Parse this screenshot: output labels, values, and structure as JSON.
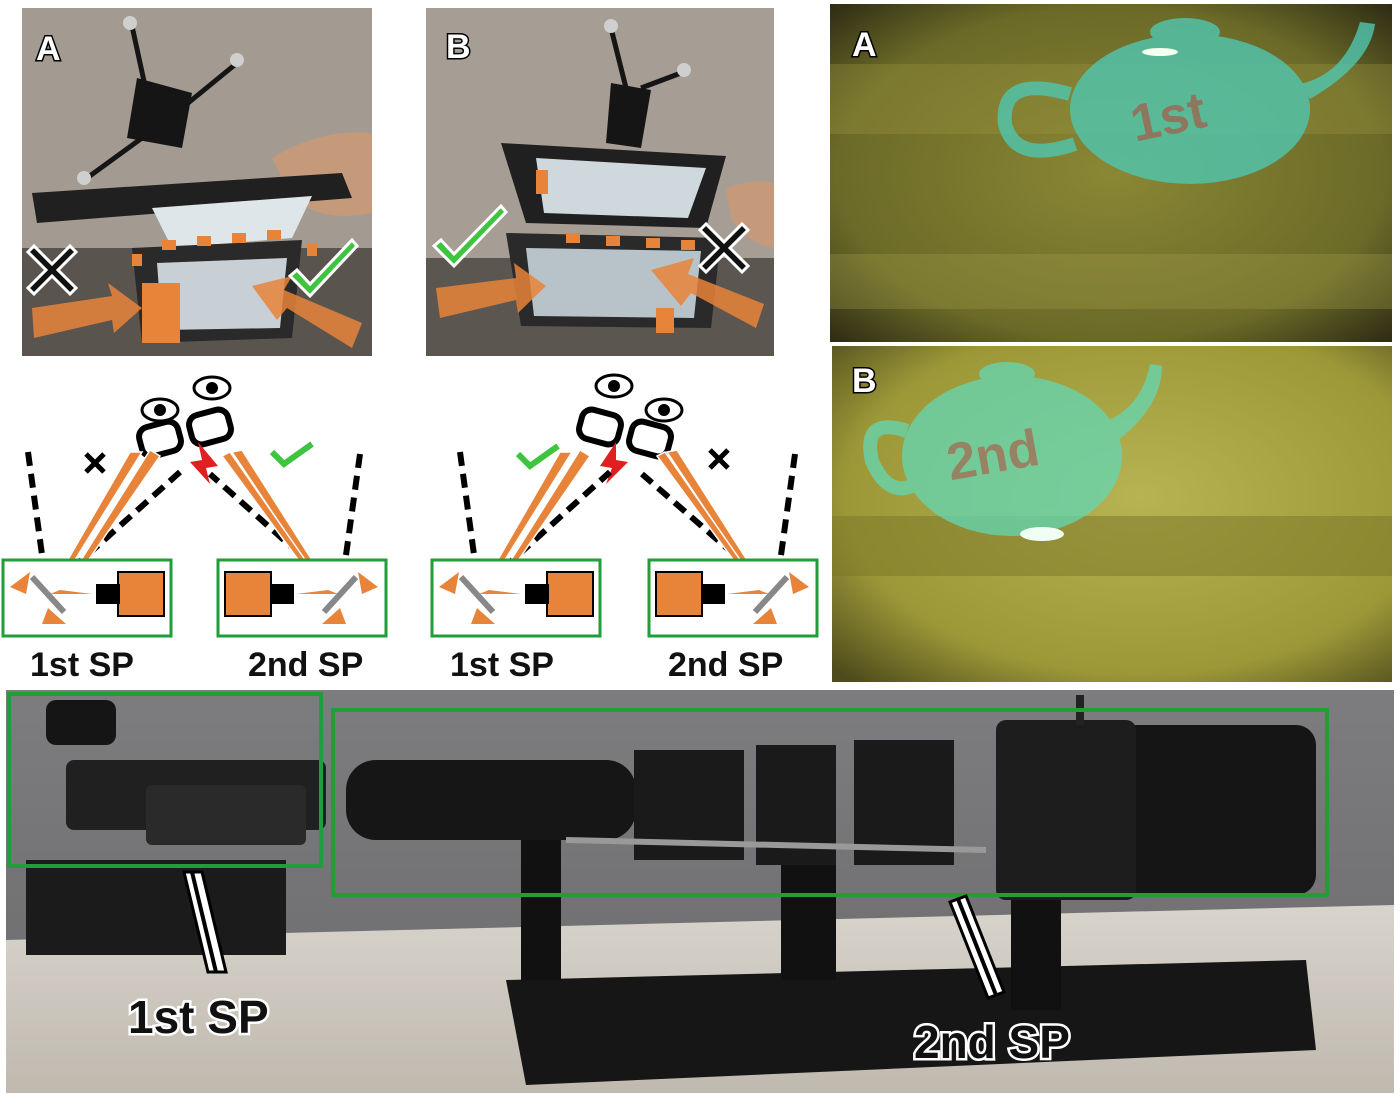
{
  "photo_panels": {
    "top_left": {
      "letter": "A"
    },
    "top_middle": {
      "letter": "B"
    },
    "view_a": {
      "letter": "A",
      "teapot_text": "1st"
    },
    "view_b": {
      "letter": "B",
      "teapot_text": "2nd"
    }
  },
  "diagrams": {
    "left": {
      "sp_labels": [
        "1st SP",
        "2nd SP"
      ]
    },
    "right": {
      "sp_labels": [
        "1st SP",
        "2nd SP"
      ]
    }
  },
  "bench_photo": {
    "labels": [
      "1st SP",
      "2nd SP"
    ]
  },
  "colors": {
    "accent_orange": "#e8843a",
    "green_check": "#3ec43e",
    "box_green": "#1f9e3a",
    "eye_ray_red": "#e02020",
    "view_yellow": "#7d7a2a",
    "teapot_cyan": "#4fc7b0"
  },
  "icons": [
    "check-icon",
    "cross-icon",
    "eye-icon",
    "glasses-icon",
    "arrow-icon"
  ]
}
